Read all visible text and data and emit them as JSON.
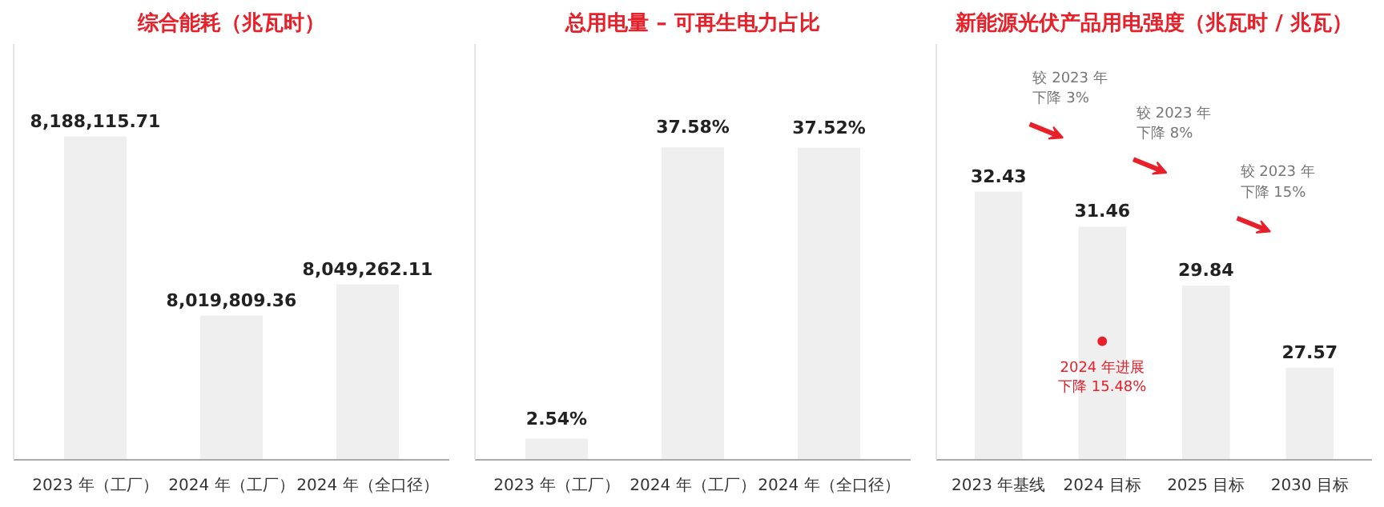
{
  "chart_data": [
    {
      "type": "bar",
      "title": "综合能耗（兆瓦时）",
      "categories": [
        "2023 年（工厂）",
        "2024 年（工厂）",
        "2024 年（全口径）"
      ],
      "values": [
        8188115.71,
        8019809.36,
        8049262.11
      ],
      "color": "#efefef",
      "ylim": [
        7884500,
        8275000
      ],
      "data_labels": true,
      "value_labels": [
        "8,188,115.71",
        "8,019,809.36",
        "8,049,262.11"
      ],
      "tick_labels": "x",
      "grid": false
    },
    {
      "type": "bar",
      "title": "总用电量 – 可再生电力占比",
      "categories": [
        "2023 年（工厂）",
        "2024 年（工厂）",
        "2024 年（全口径）"
      ],
      "values": [
        2.54,
        37.58,
        37.52
      ],
      "color": "#efefef",
      "ylim": [
        0,
        50
      ],
      "data_labels": true,
      "value_labels": [
        "2.54%",
        "37.58%",
        "37.52%"
      ],
      "tick_labels": "x",
      "grid": false
    },
    {
      "type": "bar",
      "title": "新能源光伏产品用电强度（兆瓦时 / 兆瓦）",
      "categories": [
        "2023 年基线",
        "2024 目标",
        "2025 目标",
        "2030 目标"
      ],
      "values": [
        32.43,
        31.46,
        29.84,
        27.57
      ],
      "color": "#efefef",
      "ylim": [
        25.03,
        36.5
      ],
      "data_labels": true,
      "tick_labels": "x",
      "grid": false,
      "annotations": [
        "较 2023 年",
        "下降 3%",
        "较 2023 年",
        "下降 8%",
        "较 2023 年",
        "下降 15%",
        {
          "text": "2024 年进展",
          "x": "2024 目标",
          "y": 28.3
        },
        "下降 15.48%"
      ]
    }
  ]
}
